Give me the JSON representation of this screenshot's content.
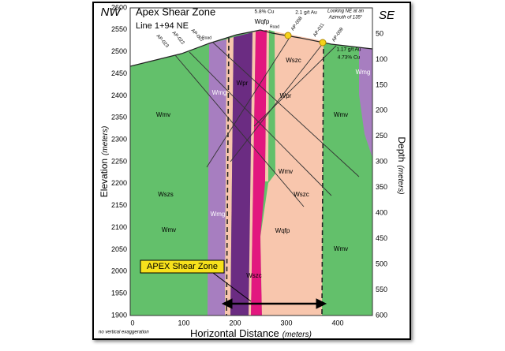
{
  "header": {
    "title": "Apex Shear Zone",
    "subtitle": "Line 1+94 NE",
    "left_direction": "NW",
    "right_direction": "SE",
    "view_note": [
      "Looking NE at an",
      "Azimuth of 135°"
    ],
    "scale_note": "no vertical exaggeration"
  },
  "axes": {
    "left": {
      "label": "Elevation",
      "unit": "(meters)",
      "ticks": [
        2600,
        2550,
        2500,
        2450,
        2400,
        2350,
        2300,
        2250,
        2200,
        2150,
        2100,
        2050,
        2000,
        1950,
        1900
      ]
    },
    "right": {
      "label": "Depth",
      "unit": "(meters)",
      "ticks": [
        50,
        100,
        150,
        200,
        250,
        300,
        350,
        400,
        450,
        500,
        550,
        600
      ]
    },
    "bottom": {
      "label": "Horizontal Distance",
      "unit": "(meters)",
      "ticks": [
        0,
        100,
        200,
        300,
        400
      ]
    }
  },
  "drill_holes": [
    "AP-023",
    "AP-022",
    "AP-007",
    "AP-008",
    "AP-011",
    "AP-009"
  ],
  "assays": [
    "5.8% Cu",
    "2.1 g/t Au",
    "1.17 g/t Au",
    "4.73% Cu"
  ],
  "roads": [
    "Road",
    "Road"
  ],
  "units": [
    "Wmv",
    "Wmv",
    "Wmv",
    "Wmv",
    "Wmg",
    "Wmg",
    "Wmg",
    "Wpr",
    "Wpr",
    "Wszc",
    "Wszc",
    "Wszc",
    "Wszs",
    "Wmv",
    "Wqfp",
    "Wqfp"
  ],
  "callout": "APEX Shear Zone"
}
